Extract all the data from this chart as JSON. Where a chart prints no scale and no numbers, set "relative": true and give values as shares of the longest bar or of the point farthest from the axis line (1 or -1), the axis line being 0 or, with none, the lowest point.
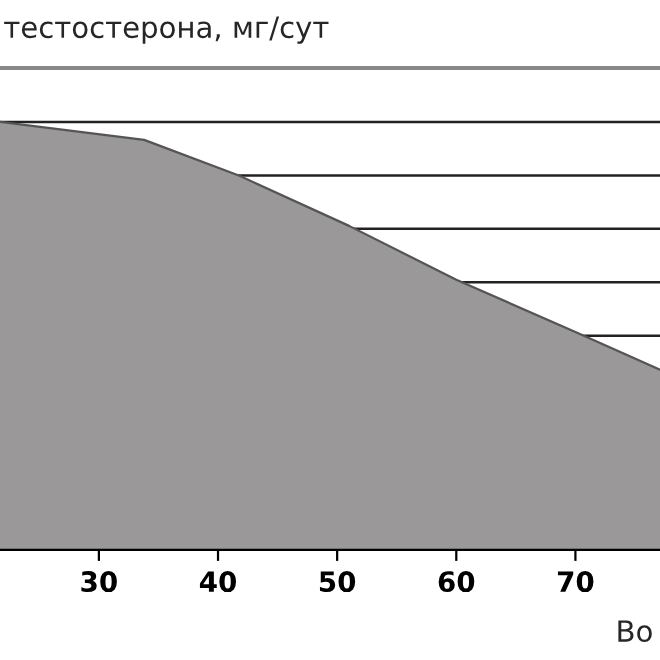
{
  "chart_data": {
    "type": "area",
    "relative": true,
    "ylabel": "тестостерона, мг/сут",
    "xlabel": "Во",
    "x": [
      21.7,
      33.8,
      41.8,
      51,
      60,
      70,
      77.1
    ],
    "series": [
      {
        "color": "#9a9899",
        "values": [
          1,
          0.958,
          0.874,
          0.757,
          0.631,
          0.509,
          0.421
        ]
      }
    ],
    "xlim": [
      21.7,
      77.1
    ],
    "xticks": [
      30,
      40,
      50,
      60,
      70
    ],
    "ref_lines": [
      {
        "axis": "y",
        "value": 1,
        "color": "#222222"
      },
      {
        "axis": "y",
        "value": 0.875,
        "color": "#222222"
      },
      {
        "axis": "y",
        "value": 0.75,
        "color": "#222222"
      },
      {
        "axis": "y",
        "value": 0.625,
        "color": "#222222"
      },
      {
        "axis": "y",
        "value": 0.5,
        "color": "#222222"
      }
    ]
  }
}
